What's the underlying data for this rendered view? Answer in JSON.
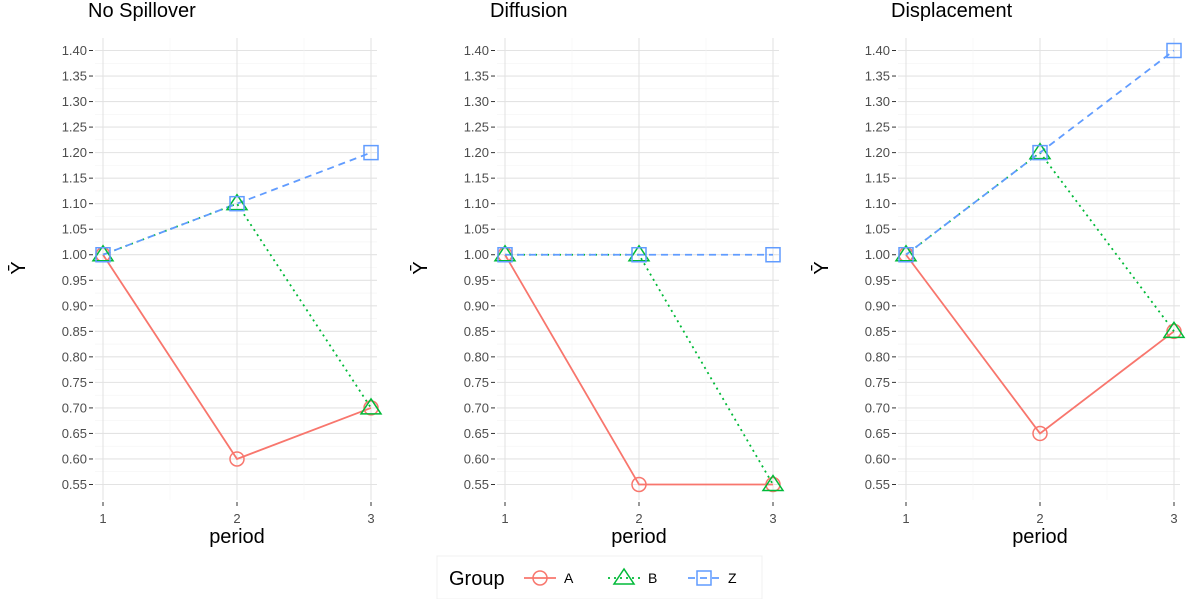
{
  "chart_data": {
    "type": "line",
    "x": [
      1,
      2,
      3
    ],
    "xlabel": "period",
    "ylabel": "Ȳ",
    "ylim": [
      0.52,
      1.43
    ],
    "yticks": [
      "0.55",
      "0.60",
      "0.65",
      "0.70",
      "0.75",
      "0.80",
      "0.85",
      "0.90",
      "0.95",
      "1.00",
      "1.05",
      "1.10",
      "1.15",
      "1.20",
      "1.25",
      "1.30",
      "1.35",
      "1.40"
    ],
    "xticks": [
      "1",
      "2",
      "3"
    ],
    "grid": true,
    "legend": {
      "title": "Group",
      "placement": "bottom",
      "entries": [
        {
          "label": "A",
          "color": "#F8766D",
          "linestyle": "solid",
          "marker": "circle"
        },
        {
          "label": "B",
          "color": "#00BA38",
          "linestyle": "dotted",
          "marker": "triangle"
        },
        {
          "label": "Z",
          "color": "#619CFF",
          "linestyle": "dashed",
          "marker": "square"
        }
      ]
    },
    "panels": [
      {
        "title": "No Spillover",
        "series": [
          {
            "name": "A",
            "values": [
              1.0,
              0.6,
              0.7
            ]
          },
          {
            "name": "B",
            "values": [
              1.0,
              1.1,
              0.7
            ]
          },
          {
            "name": "Z",
            "values": [
              1.0,
              1.1,
              1.2
            ]
          }
        ]
      },
      {
        "title": "Diffusion",
        "series": [
          {
            "name": "A",
            "values": [
              1.0,
              0.55,
              0.55
            ]
          },
          {
            "name": "B",
            "values": [
              1.0,
              1.0,
              0.55
            ]
          },
          {
            "name": "Z",
            "values": [
              1.0,
              1.0,
              1.0
            ]
          }
        ]
      },
      {
        "title": "Displacement",
        "series": [
          {
            "name": "A",
            "values": [
              1.0,
              0.65,
              0.85
            ]
          },
          {
            "name": "B",
            "values": [
              1.0,
              1.2,
              0.85
            ]
          },
          {
            "name": "Z",
            "values": [
              1.0,
              1.2,
              1.4
            ]
          }
        ]
      }
    ]
  }
}
